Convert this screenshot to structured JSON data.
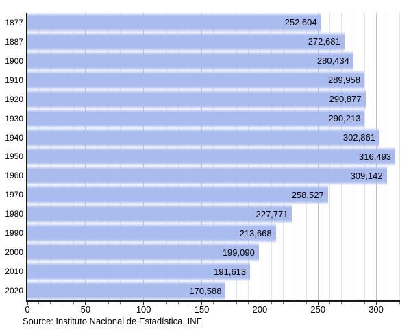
{
  "chart_data": {
    "type": "bar",
    "orientation": "horizontal",
    "title": "",
    "categories": [
      "1877",
      "1887",
      "1900",
      "1910",
      "1920",
      "1930",
      "1940",
      "1950",
      "1960",
      "1970",
      "1980",
      "1990",
      "2000",
      "2010",
      "2020"
    ],
    "values": [
      252604,
      272681,
      280434,
      289958,
      290877,
      290213,
      302861,
      316493,
      309142,
      258527,
      227771,
      213668,
      199090,
      191613,
      170588
    ],
    "value_labels": [
      "252,604",
      "272,681",
      "280,434",
      "289,958",
      "290,877",
      "290,213",
      "302,861",
      "316,493",
      "309,142",
      "258,527",
      "227,771",
      "213,668",
      "199,090",
      "191,613",
      "170,588"
    ],
    "x_axis": {
      "tick_values": [
        0,
        50,
        100,
        150,
        200,
        250,
        300
      ],
      "tick_labels": [
        "0",
        "50",
        "100",
        "150",
        "200",
        "250",
        "300"
      ],
      "minor_step": 10,
      "xlim": [
        0,
        320
      ],
      "value_scale_divisor": 1000
    },
    "grid": "vertical",
    "legend": "none",
    "source": "Source: Instituto Nacional de Estadística, INE",
    "colors": {
      "bar": "#aabbee",
      "grid_minor": "#e4e4e4",
      "grid_major": "#c2c2c2",
      "axis": "#1a1a1a",
      "tick_minor": "#777777",
      "tick_major": "#333333",
      "text": "#000000"
    }
  }
}
